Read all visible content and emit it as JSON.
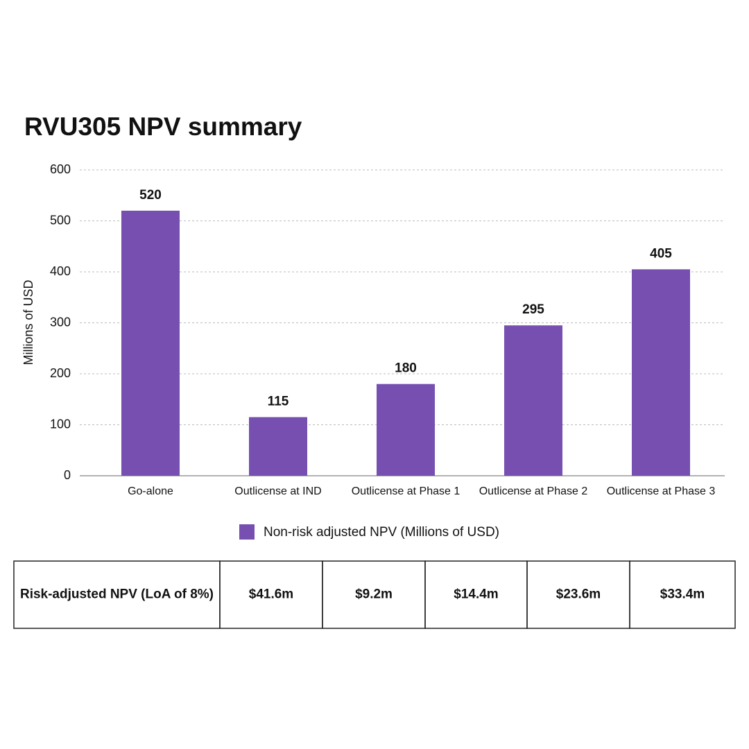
{
  "chart_data": {
    "type": "bar",
    "title": "RVU305 NPV summary",
    "y_label": "Millions of USD",
    "categories": [
      "Go-alone",
      "Outlicense at IND",
      "Outlicense at Phase 1",
      "Outlicense at Phase 2",
      "Outlicense at Phase 3"
    ],
    "series": [
      {
        "name": "Non-risk adjusted NPV (Millions of USD)",
        "color": "#764fb0",
        "values": [
          520,
          115,
          180,
          295,
          405
        ]
      }
    ],
    "ylim": [
      0,
      600
    ],
    "yticks": [
      0,
      100,
      200,
      300,
      400,
      500,
      600
    ],
    "grid": true,
    "legend": "bottom"
  },
  "table": {
    "rows": [
      [
        "Risk-adjusted NPV (LoA of 8%)",
        "$41.6m",
        "$9.2m",
        "$14.4m",
        "$23.6m",
        "$33.4m"
      ]
    ]
  }
}
